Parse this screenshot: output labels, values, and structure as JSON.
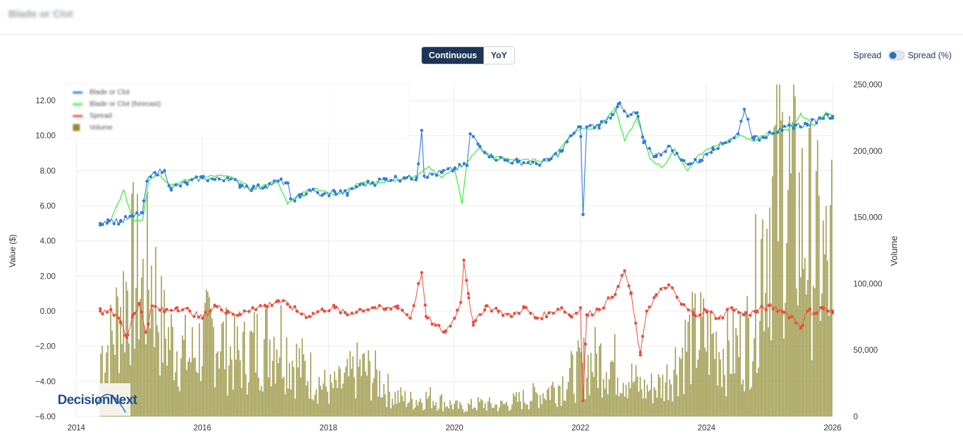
{
  "page": {
    "title": "Blade or Clot"
  },
  "view_toggle": {
    "options": [
      "Continuous",
      "YoY"
    ],
    "selected": "Continuous"
  },
  "spread_toggle": {
    "left_label": "Spread",
    "right_label": "Spread (%)",
    "state": "Spread"
  },
  "logo": {
    "text": "DecisionNext"
  },
  "colors": {
    "price": "#2f7ed8",
    "forecast": "#4cf04c",
    "spread": "#ee4b3b",
    "volume": "#8f8b2f",
    "active_button": "#1d3557"
  },
  "chart_data": {
    "type": "line",
    "ylabel": "Value ($)",
    "y2label": "Volume",
    "ylim": [
      -6,
      12
    ],
    "y2lim": [
      0,
      250000
    ],
    "xlim": [
      2014,
      2026
    ],
    "x_ticks": [
      "2014",
      "2016",
      "2018",
      "2020",
      "2022",
      "2024",
      "2026"
    ],
    "y_ticks": [
      "12.00",
      "10.00",
      "8.00",
      "6.00",
      "4.00",
      "2.00",
      "0.00",
      "−2.00",
      "−4.00",
      "−6.00"
    ],
    "y2_ticks": [
      "250,000",
      "200,000",
      "150,000",
      "100,000",
      "50,000",
      "0"
    ],
    "legend": {
      "placement": "top-left",
      "entries": [
        {
          "name": "Blade or Clot",
          "kind": "line-marker"
        },
        {
          "name": "Blade or Clot (forecast)",
          "kind": "line"
        },
        {
          "name": "Spread",
          "kind": "line-marker"
        },
        {
          "name": "Volume",
          "kind": "bar"
        }
      ]
    },
    "series": [
      {
        "name": "Blade or Clot",
        "axis": "y",
        "style": "line-marker",
        "points": [
          [
            2014.38,
            5.0
          ],
          [
            2014.5,
            5.2
          ],
          [
            2014.7,
            5.1
          ],
          [
            2014.9,
            5.4
          ],
          [
            2015.05,
            5.6
          ],
          [
            2015.12,
            7.4
          ],
          [
            2015.25,
            7.9
          ],
          [
            2015.4,
            8.0
          ],
          [
            2015.5,
            7.0
          ],
          [
            2015.75,
            7.3
          ],
          [
            2016.0,
            7.6
          ],
          [
            2016.2,
            7.5
          ],
          [
            2016.4,
            7.6
          ],
          [
            2016.6,
            7.2
          ],
          [
            2016.8,
            7.0
          ],
          [
            2017.0,
            7.1
          ],
          [
            2017.2,
            7.4
          ],
          [
            2017.35,
            7.3
          ],
          [
            2017.4,
            6.4
          ],
          [
            2017.55,
            6.5
          ],
          [
            2017.7,
            6.9
          ],
          [
            2017.9,
            6.6
          ],
          [
            2018.1,
            6.8
          ],
          [
            2018.3,
            6.7
          ],
          [
            2018.5,
            7.2
          ],
          [
            2018.7,
            7.3
          ],
          [
            2018.9,
            7.5
          ],
          [
            2019.2,
            7.6
          ],
          [
            2019.4,
            7.6
          ],
          [
            2019.48,
            10.3
          ],
          [
            2019.52,
            7.7
          ],
          [
            2019.8,
            7.9
          ],
          [
            2020.0,
            8.1
          ],
          [
            2020.2,
            8.3
          ],
          [
            2020.25,
            10.1
          ],
          [
            2020.4,
            9.4
          ],
          [
            2020.6,
            8.8
          ],
          [
            2020.8,
            8.6
          ],
          [
            2021.0,
            8.5
          ],
          [
            2021.3,
            8.4
          ],
          [
            2021.5,
            8.6
          ],
          [
            2021.7,
            9.1
          ],
          [
            2021.85,
            10.0
          ],
          [
            2022.0,
            10.5
          ],
          [
            2022.04,
            5.5
          ],
          [
            2022.1,
            10.5
          ],
          [
            2022.3,
            10.6
          ],
          [
            2022.5,
            11.2
          ],
          [
            2022.6,
            11.8
          ],
          [
            2022.75,
            11.1
          ],
          [
            2022.9,
            11.3
          ],
          [
            2023.0,
            9.6
          ],
          [
            2023.2,
            8.8
          ],
          [
            2023.4,
            9.4
          ],
          [
            2023.6,
            8.6
          ],
          [
            2023.75,
            8.4
          ],
          [
            2023.9,
            8.6
          ],
          [
            2024.1,
            9.3
          ],
          [
            2024.3,
            9.6
          ],
          [
            2024.5,
            10.1
          ],
          [
            2024.6,
            11.5
          ],
          [
            2024.75,
            9.8
          ],
          [
            2024.9,
            9.9
          ],
          [
            2025.0,
            10.2
          ],
          [
            2025.2,
            10.3
          ],
          [
            2025.4,
            10.6
          ],
          [
            2025.6,
            10.6
          ],
          [
            2025.8,
            11.0
          ],
          [
            2025.92,
            11.2
          ],
          [
            2026.0,
            11.1
          ]
        ]
      },
      {
        "name": "Blade or Clot (forecast)",
        "axis": "y",
        "style": "line",
        "points": [
          [
            2014.55,
            5.2
          ],
          [
            2014.75,
            6.9
          ],
          [
            2014.9,
            5.2
          ],
          [
            2015.05,
            5.2
          ],
          [
            2015.15,
            7.5
          ],
          [
            2015.3,
            7.8
          ],
          [
            2015.5,
            7.2
          ],
          [
            2016.0,
            7.7
          ],
          [
            2016.4,
            7.7
          ],
          [
            2016.8,
            7.0
          ],
          [
            2017.2,
            7.4
          ],
          [
            2017.35,
            6.1
          ],
          [
            2017.6,
            6.8
          ],
          [
            2017.8,
            7.0
          ],
          [
            2018.1,
            6.6
          ],
          [
            2018.5,
            7.3
          ],
          [
            2019.0,
            7.4
          ],
          [
            2019.4,
            7.7
          ],
          [
            2019.6,
            8.2
          ],
          [
            2019.8,
            7.6
          ],
          [
            2020.0,
            8.2
          ],
          [
            2020.12,
            6.1
          ],
          [
            2020.2,
            8.5
          ],
          [
            2020.4,
            9.3
          ],
          [
            2020.6,
            8.8
          ],
          [
            2021.0,
            8.6
          ],
          [
            2021.5,
            8.6
          ],
          [
            2021.85,
            10.0
          ],
          [
            2022.0,
            10.4
          ],
          [
            2022.2,
            10.4
          ],
          [
            2022.4,
            10.9
          ],
          [
            2022.55,
            11.6
          ],
          [
            2022.7,
            9.7
          ],
          [
            2022.9,
            11.0
          ],
          [
            2023.1,
            8.7
          ],
          [
            2023.3,
            8.2
          ],
          [
            2023.5,
            9.2
          ],
          [
            2023.7,
            8.0
          ],
          [
            2023.85,
            8.8
          ],
          [
            2024.1,
            9.4
          ],
          [
            2024.3,
            9.6
          ],
          [
            2024.5,
            10.0
          ],
          [
            2024.75,
            9.7
          ],
          [
            2025.0,
            10.2
          ],
          [
            2025.3,
            10.3
          ],
          [
            2025.5,
            11.2
          ],
          [
            2025.7,
            10.6
          ],
          [
            2025.9,
            11.3
          ],
          [
            2026.0,
            11.1
          ]
        ]
      },
      {
        "name": "Spread",
        "axis": "y",
        "style": "line-marker",
        "points": [
          [
            2014.38,
            0.0
          ],
          [
            2014.55,
            0.1
          ],
          [
            2014.7,
            -0.6
          ],
          [
            2014.8,
            -1.5
          ],
          [
            2014.9,
            -0.2
          ],
          [
            2015.0,
            0.4
          ],
          [
            2015.1,
            -1.2
          ],
          [
            2015.2,
            0.3
          ],
          [
            2015.4,
            0.0
          ],
          [
            2015.6,
            0.2
          ],
          [
            2015.8,
            0.0
          ],
          [
            2016.0,
            -0.4
          ],
          [
            2016.2,
            0.3
          ],
          [
            2016.4,
            0.0
          ],
          [
            2016.6,
            -0.2
          ],
          [
            2016.8,
            0.2
          ],
          [
            2017.0,
            0.3
          ],
          [
            2017.2,
            0.6
          ],
          [
            2017.35,
            0.4
          ],
          [
            2017.5,
            0.0
          ],
          [
            2017.7,
            -0.3
          ],
          [
            2017.9,
            0.1
          ],
          [
            2018.1,
            0.2
          ],
          [
            2018.3,
            -0.2
          ],
          [
            2018.5,
            0.1
          ],
          [
            2018.7,
            0.2
          ],
          [
            2018.9,
            0.1
          ],
          [
            2019.1,
            0.3
          ],
          [
            2019.3,
            -0.4
          ],
          [
            2019.48,
            2.2
          ],
          [
            2019.55,
            -0.3
          ],
          [
            2019.7,
            -0.8
          ],
          [
            2019.85,
            -1.2
          ],
          [
            2020.0,
            -0.4
          ],
          [
            2020.1,
            0.5
          ],
          [
            2020.15,
            2.9
          ],
          [
            2020.22,
            1.0
          ],
          [
            2020.3,
            -0.8
          ],
          [
            2020.5,
            0.3
          ],
          [
            2020.7,
            0.0
          ],
          [
            2020.9,
            -0.3
          ],
          [
            2021.1,
            0.2
          ],
          [
            2021.3,
            -0.4
          ],
          [
            2021.5,
            -0.1
          ],
          [
            2021.7,
            0.2
          ],
          [
            2021.85,
            -0.3
          ],
          [
            2022.0,
            0.2
          ],
          [
            2022.04,
            -5.1
          ],
          [
            2022.1,
            -0.2
          ],
          [
            2022.3,
            0.1
          ],
          [
            2022.5,
            0.8
          ],
          [
            2022.6,
            1.4
          ],
          [
            2022.7,
            2.3
          ],
          [
            2022.8,
            1.0
          ],
          [
            2022.95,
            -2.5
          ],
          [
            2023.05,
            0.0
          ],
          [
            2023.2,
            0.9
          ],
          [
            2023.4,
            1.5
          ],
          [
            2023.6,
            0.4
          ],
          [
            2023.8,
            -0.2
          ],
          [
            2024.0,
            0.0
          ],
          [
            2024.2,
            -0.4
          ],
          [
            2024.4,
            0.2
          ],
          [
            2024.6,
            -0.2
          ],
          [
            2024.8,
            0.0
          ],
          [
            2025.0,
            0.3
          ],
          [
            2025.2,
            0.0
          ],
          [
            2025.35,
            -0.3
          ],
          [
            2025.5,
            -0.9
          ],
          [
            2025.6,
            0.0
          ],
          [
            2025.75,
            -0.1
          ],
          [
            2025.85,
            0.2
          ],
          [
            2026.0,
            -0.1
          ]
        ]
      },
      {
        "name": "Volume",
        "axis": "y2",
        "style": "bar",
        "points": [
          [
            2014.38,
            60000
          ],
          [
            2014.55,
            70000
          ],
          [
            2014.7,
            105000
          ],
          [
            2014.9,
            135000
          ],
          [
            2015.05,
            120000
          ],
          [
            2015.2,
            135000
          ],
          [
            2015.35,
            80000
          ],
          [
            2015.6,
            65000
          ],
          [
            2015.8,
            55000
          ],
          [
            2016.0,
            70000
          ],
          [
            2016.2,
            80000
          ],
          [
            2016.4,
            60000
          ],
          [
            2016.6,
            55000
          ],
          [
            2016.8,
            65000
          ],
          [
            2017.0,
            70000
          ],
          [
            2017.2,
            80000
          ],
          [
            2017.4,
            55000
          ],
          [
            2017.6,
            45000
          ],
          [
            2017.8,
            35000
          ],
          [
            2018.0,
            25000
          ],
          [
            2018.2,
            30000
          ],
          [
            2018.5,
            45000
          ],
          [
            2018.8,
            35000
          ],
          [
            2019.0,
            20000
          ],
          [
            2019.3,
            15000
          ],
          [
            2019.6,
            18000
          ],
          [
            2019.9,
            12000
          ],
          [
            2020.1,
            8000
          ],
          [
            2020.4,
            12000
          ],
          [
            2020.7,
            10000
          ],
          [
            2021.0,
            15000
          ],
          [
            2021.3,
            20000
          ],
          [
            2021.6,
            28000
          ],
          [
            2021.9,
            40000
          ],
          [
            2022.1,
            50000
          ],
          [
            2022.4,
            55000
          ],
          [
            2022.6,
            45000
          ],
          [
            2022.8,
            35000
          ],
          [
            2023.0,
            25000
          ],
          [
            2023.3,
            30000
          ],
          [
            2023.5,
            50000
          ],
          [
            2023.7,
            70000
          ],
          [
            2023.9,
            75000
          ],
          [
            2024.1,
            70000
          ],
          [
            2024.3,
            60000
          ],
          [
            2024.5,
            65000
          ],
          [
            2024.7,
            80000
          ],
          [
            2024.85,
            150000
          ],
          [
            2025.0,
            200000
          ],
          [
            2025.15,
            230000
          ],
          [
            2025.3,
            210000
          ],
          [
            2025.5,
            180000
          ],
          [
            2025.65,
            170000
          ],
          [
            2025.8,
            150000
          ],
          [
            2025.95,
            130000
          ],
          [
            2026.0,
            220000
          ]
        ]
      }
    ]
  }
}
